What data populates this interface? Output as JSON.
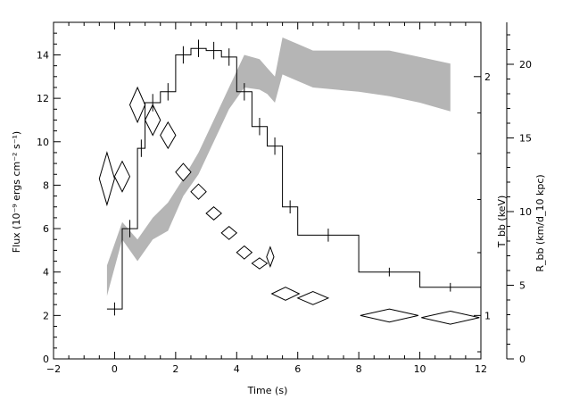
{
  "chart_data": {
    "type": "line",
    "xlabel": "Time (s)",
    "ylabel_left": "Flux (10⁻⁹ ergs cm⁻² s⁻¹)",
    "ylabel_right_inner": "T_bb (keV)",
    "ylabel_right_outer": "R_bb (km/d_10 kpc)",
    "xlim": [
      -2,
      12
    ],
    "ylim_left": [
      0,
      15.5
    ],
    "xticks": [
      "−2",
      "0",
      "2",
      "4",
      "6",
      "8",
      "10",
      "12"
    ],
    "yticks_left": [
      "0",
      "2",
      "4",
      "6",
      "8",
      "10",
      "12",
      "14"
    ],
    "yticks_right_outer": [
      "0",
      "5",
      "10",
      "15",
      "20"
    ],
    "yticks_right_inner": [
      "1",
      "2"
    ],
    "colors": {
      "radius_band": "#b5b5b5",
      "lines": "#000000"
    },
    "series": [
      {
        "name": "Flux",
        "style": "histogram",
        "bins": [
          {
            "x0": -0.25,
            "x1": 0.25,
            "y": 2.3,
            "err": 0.3
          },
          {
            "x0": 0.25,
            "x1": 0.75,
            "y": 6.0,
            "err": 0.4
          },
          {
            "x0": 0.75,
            "x1": 1.0,
            "y": 9.7,
            "err": 0.4
          },
          {
            "x0": 1.0,
            "x1": 1.5,
            "y": 11.8,
            "err": 0.4
          },
          {
            "x0": 1.5,
            "x1": 2.0,
            "y": 12.3,
            "err": 0.4
          },
          {
            "x0": 2.0,
            "x1": 2.5,
            "y": 14.0,
            "err": 0.4
          },
          {
            "x0": 2.5,
            "x1": 3.0,
            "y": 14.3,
            "err": 0.4
          },
          {
            "x0": 3.0,
            "x1": 3.5,
            "y": 14.2,
            "err": 0.4
          },
          {
            "x0": 3.5,
            "x1": 4.0,
            "y": 13.9,
            "err": 0.4
          },
          {
            "x0": 4.0,
            "x1": 4.5,
            "y": 12.3,
            "err": 0.4
          },
          {
            "x0": 4.5,
            "x1": 5.0,
            "y": 10.7,
            "err": 0.4
          },
          {
            "x0": 5.0,
            "x1": 5.5,
            "y": 9.8,
            "err": 0.4
          },
          {
            "x0": 5.5,
            "x1": 6.0,
            "y": 7.0,
            "err": 0.3
          },
          {
            "x0": 6.0,
            "x1": 8.0,
            "y": 5.7,
            "err": 0.3
          },
          {
            "x0": 8.0,
            "x1": 10.0,
            "y": 4.0,
            "err": 0.2
          },
          {
            "x0": 10.0,
            "x1": 12.0,
            "y": 3.3,
            "err": 0.2
          }
        ]
      },
      {
        "name": "T_bb",
        "style": "diamond",
        "points": [
          {
            "x": -0.25,
            "y": 8.3,
            "hw": 0.25,
            "hh": 1.2
          },
          {
            "x": 0.25,
            "y": 8.4,
            "hw": 0.25,
            "hh": 0.7
          },
          {
            "x": 0.75,
            "y": 11.7,
            "hw": 0.25,
            "hh": 0.8
          },
          {
            "x": 1.25,
            "y": 11.0,
            "hw": 0.25,
            "hh": 0.7
          },
          {
            "x": 1.75,
            "y": 10.3,
            "hw": 0.25,
            "hh": 0.6
          },
          {
            "x": 2.25,
            "y": 8.6,
            "hw": 0.25,
            "hh": 0.4
          },
          {
            "x": 2.75,
            "y": 7.7,
            "hw": 0.25,
            "hh": 0.35
          },
          {
            "x": 3.25,
            "y": 6.7,
            "hw": 0.25,
            "hh": 0.3
          },
          {
            "x": 3.75,
            "y": 5.8,
            "hw": 0.25,
            "hh": 0.3
          },
          {
            "x": 4.25,
            "y": 4.9,
            "hw": 0.25,
            "hh": 0.3
          },
          {
            "x": 4.75,
            "y": 4.4,
            "hw": 0.25,
            "hh": 0.25
          },
          {
            "x": 5.1,
            "y": 4.7,
            "hw": 0.12,
            "hh": 0.45
          },
          {
            "x": 5.6,
            "y": 3.0,
            "hw": 0.45,
            "hh": 0.3
          },
          {
            "x": 6.5,
            "y": 2.8,
            "hw": 0.5,
            "hh": 0.3
          },
          {
            "x": 9.0,
            "y": 2.0,
            "hw": 0.95,
            "hh": 0.3
          },
          {
            "x": 11.0,
            "y": 1.9,
            "hw": 0.95,
            "hh": 0.3
          }
        ]
      },
      {
        "name": "R_bb",
        "style": "band",
        "x": [
          -0.25,
          0.25,
          0.75,
          1.25,
          1.75,
          2.25,
          2.75,
          3.25,
          3.75,
          4.25,
          4.75,
          5.0,
          5.25,
          5.5,
          6.0,
          6.5,
          8.0,
          9.0,
          10.0,
          11.0
        ],
        "upper": [
          4.3,
          6.3,
          5.5,
          6.5,
          7.2,
          8.3,
          9.5,
          11.0,
          12.5,
          14.0,
          13.8,
          13.4,
          13.0,
          14.8,
          14.5,
          14.2,
          14.2,
          14.2,
          13.9,
          13.6
        ],
        "lower": [
          2.9,
          5.5,
          4.5,
          5.5,
          5.9,
          7.5,
          8.5,
          10.0,
          11.5,
          12.5,
          12.4,
          12.2,
          11.8,
          13.1,
          12.8,
          12.5,
          12.3,
          12.1,
          11.8,
          11.4
        ]
      }
    ]
  }
}
